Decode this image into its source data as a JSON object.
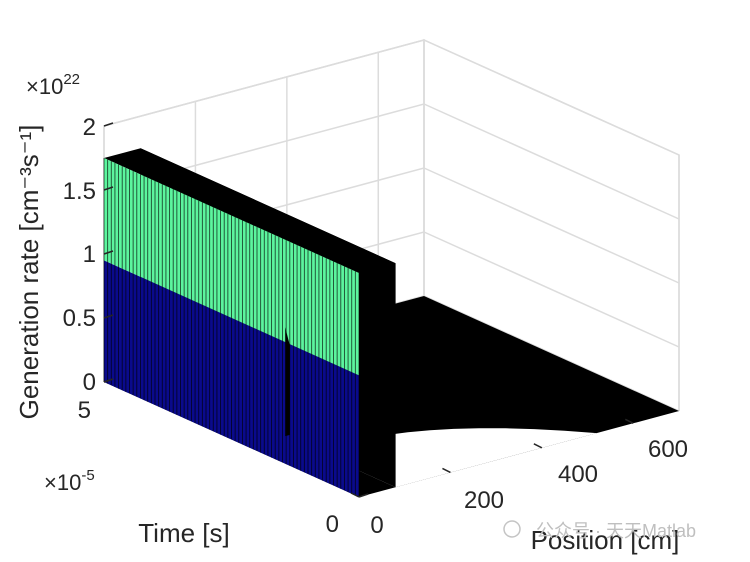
{
  "chart_data": {
    "type": "surface-3d",
    "title": "",
    "xlabel": "Position [cm]",
    "ylabel": "Time [s]",
    "zlabel": "Generation rate [cm⁻³s⁻¹]",
    "xlim": [
      0,
      700
    ],
    "ylim": [
      0,
      5
    ],
    "zlim": [
      0,
      2
    ],
    "xticks": [
      0,
      200,
      400,
      600
    ],
    "yticks": [
      0,
      5
    ],
    "zticks": [
      0,
      0.5,
      1,
      1.5,
      2
    ],
    "xtick_labels": [
      "0",
      "200",
      "400",
      "600"
    ],
    "ytick_labels": [
      "0",
      "5"
    ],
    "ztick_labels": [
      "0",
      "0.5",
      "1",
      "1.5",
      "2"
    ],
    "y_exponent_base": "×10",
    "y_exponent_power": "-5",
    "z_exponent_base": "×10",
    "z_exponent_power": "22",
    "grid": true,
    "colormap": [
      "#000080",
      "#0000ff",
      "#00ffff",
      "#80ff80",
      "#ffff00",
      "#ff0000"
    ],
    "generation_pulse": {
      "description": "rectangular generation pulse in time, from the start to the end of the simulated window, occupying the low-position region",
      "x_start": 0,
      "x_end": 80,
      "t_start": 0,
      "t_end": 5,
      "value": 1.75,
      "color_split_value": 0.95,
      "lower_color": "#0a0a8c",
      "upper_color": "#5cf59e"
    },
    "baseline_region": {
      "value": 0,
      "color": "#000000"
    }
  },
  "watermark": {
    "text": "公众号 · 天天Matlab"
  }
}
